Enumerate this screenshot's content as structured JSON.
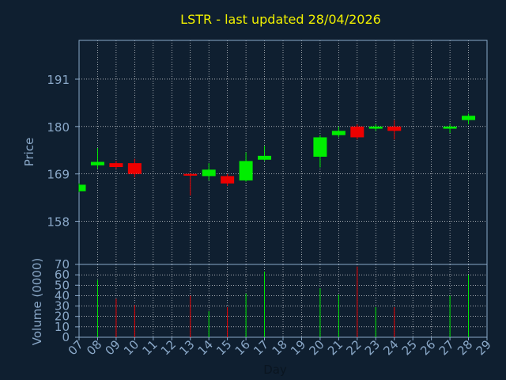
{
  "chart_data": [
    {
      "type": "candlestick",
      "title": "LSTR - last updated 28/04/2026",
      "ylabel": "Price",
      "ylim": [
        148,
        200
      ],
      "yticks": [
        158,
        169,
        180,
        191
      ],
      "x_ticks": [
        "07",
        "08",
        "09",
        "10",
        "11",
        "12",
        "13",
        "14",
        "15",
        "16",
        "17",
        "18",
        "19",
        "20",
        "21",
        "22",
        "23",
        "24",
        "25",
        "26",
        "27",
        "28",
        "29"
      ],
      "grid": true,
      "colors": {
        "up": "#00ee00",
        "down": "#ee0000",
        "title": "#f0f000",
        "axis_text": "#8aa8c8",
        "grid": "#ffffff",
        "background": "#0f1f30"
      },
      "candles": [
        {
          "day": "07",
          "open": 165.0,
          "close": 166.5,
          "high": 166.8,
          "low": 164.8
        },
        {
          "day": "08",
          "open": 171.0,
          "close": 171.8,
          "high": 175.0,
          "low": 170.2
        },
        {
          "day": "09",
          "open": 171.5,
          "close": 170.6,
          "high": 172.0,
          "low": 170.2
        },
        {
          "day": "10",
          "open": 171.5,
          "close": 169.0,
          "high": 172.5,
          "low": 168.2
        },
        {
          "day": "13",
          "open": 169.0,
          "close": 168.6,
          "high": 169.2,
          "low": 164.0
        },
        {
          "day": "14",
          "open": 168.5,
          "close": 170.0,
          "high": 171.5,
          "low": 167.5
        },
        {
          "day": "15",
          "open": 168.5,
          "close": 166.8,
          "high": 169.0,
          "low": 166.2
        },
        {
          "day": "16",
          "open": 167.5,
          "close": 172.0,
          "high": 174.0,
          "low": 167.2
        },
        {
          "day": "17",
          "open": 172.3,
          "close": 173.2,
          "high": 175.5,
          "low": 172.0
        },
        {
          "day": "20",
          "open": 173.0,
          "close": 177.5,
          "high": 178.0,
          "low": 170.5
        },
        {
          "day": "21",
          "open": 178.0,
          "close": 179.0,
          "high": 180.0,
          "low": 177.5
        },
        {
          "day": "22",
          "open": 180.0,
          "close": 177.5,
          "high": 180.5,
          "low": 177.0
        },
        {
          "day": "23",
          "open": 179.5,
          "close": 180.0,
          "high": 180.5,
          "low": 179.0
        },
        {
          "day": "24",
          "open": 180.0,
          "close": 179.0,
          "high": 181.5,
          "low": 177.0
        },
        {
          "day": "27",
          "open": 179.5,
          "close": 180.0,
          "high": 180.5,
          "low": 178.5
        },
        {
          "day": "28",
          "open": 181.5,
          "close": 182.5,
          "high": 183.0,
          "low": 180.5
        }
      ]
    },
    {
      "type": "bar",
      "ylabel": "Volume (0000)",
      "xlabel": "Day",
      "ylim": [
        0,
        70
      ],
      "yticks": [
        0,
        10,
        20,
        30,
        40,
        50,
        60,
        70
      ],
      "x_ticks": [
        "07",
        "08",
        "09",
        "10",
        "11",
        "12",
        "13",
        "14",
        "15",
        "16",
        "17",
        "18",
        "19",
        "20",
        "21",
        "22",
        "23",
        "24",
        "25",
        "26",
        "27",
        "28",
        "29"
      ],
      "bars": [
        {
          "day": "08",
          "value": 55,
          "direction": "up"
        },
        {
          "day": "09",
          "value": 37,
          "direction": "down"
        },
        {
          "day": "10",
          "value": 31,
          "direction": "down"
        },
        {
          "day": "13",
          "value": 40,
          "direction": "down"
        },
        {
          "day": "14",
          "value": 25,
          "direction": "up"
        },
        {
          "day": "15",
          "value": 29,
          "direction": "down"
        },
        {
          "day": "16",
          "value": 42,
          "direction": "up"
        },
        {
          "day": "17",
          "value": 63,
          "direction": "up"
        },
        {
          "day": "20",
          "value": 47,
          "direction": "up"
        },
        {
          "day": "21",
          "value": 41,
          "direction": "up"
        },
        {
          "day": "22",
          "value": 68,
          "direction": "down"
        },
        {
          "day": "23",
          "value": 29,
          "direction": "up"
        },
        {
          "day": "24",
          "value": 29,
          "direction": "down"
        },
        {
          "day": "27",
          "value": 40,
          "direction": "up"
        },
        {
          "day": "28",
          "value": 60,
          "direction": "up"
        }
      ]
    }
  ]
}
